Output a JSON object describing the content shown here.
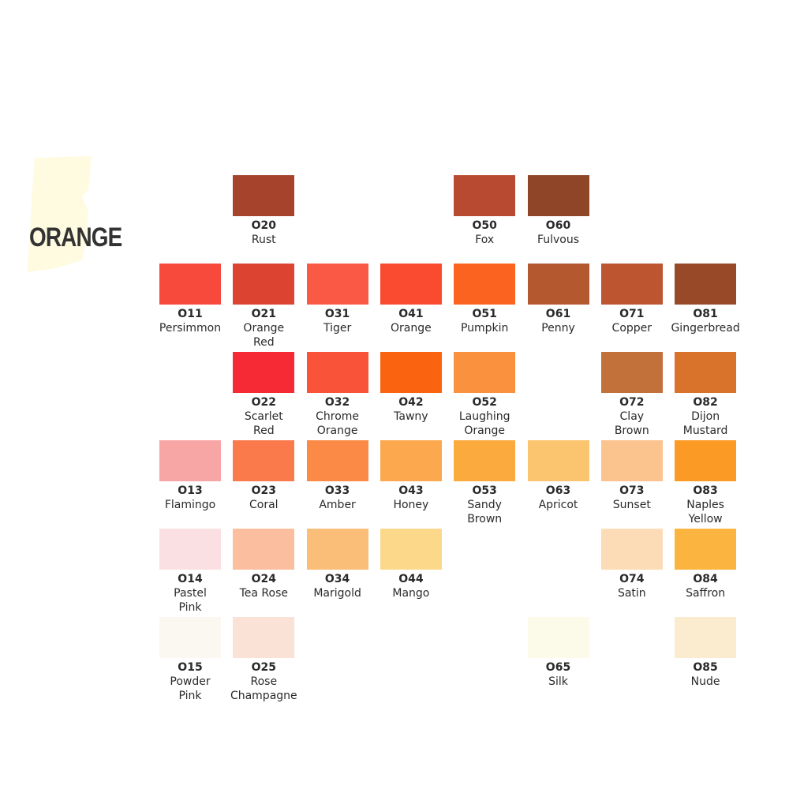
{
  "title": "ORANGE",
  "swatches": [
    {
      "code": "O20",
      "name": [
        "Rust"
      ],
      "color": "#a5432d"
    },
    {
      "code": "O50",
      "name": [
        "Fox"
      ],
      "color": "#b94a32"
    },
    {
      "code": "O60",
      "name": [
        "Fulvous"
      ],
      "color": "#8f4528"
    },
    {
      "code": "O11",
      "name": [
        "Persimmon"
      ],
      "color": "#f8493d"
    },
    {
      "code": "O21",
      "name": [
        "Orange",
        "Red"
      ],
      "color": "#dc4330"
    },
    {
      "code": "O31",
      "name": [
        "Tiger"
      ],
      "color": "#fa5a45"
    },
    {
      "code": "O41",
      "name": [
        "Orange"
      ],
      "color": "#fa4a30"
    },
    {
      "code": "O51",
      "name": [
        "Pumpkin"
      ],
      "color": "#fa6420"
    },
    {
      "code": "O61",
      "name": [
        "Penny"
      ],
      "color": "#b4582f"
    },
    {
      "code": "O71",
      "name": [
        "Copper"
      ],
      "color": "#bc5530"
    },
    {
      "code": "O81",
      "name": [
        "Gingerbread"
      ],
      "color": "#984a28"
    },
    {
      "code": "O22",
      "name": [
        "Scarlet",
        "Red"
      ],
      "color": "#f52a35"
    },
    {
      "code": "O32",
      "name": [
        "Chrome",
        "Orange"
      ],
      "color": "#f9543a"
    },
    {
      "code": "O42",
      "name": [
        "Tawny"
      ],
      "color": "#fa6410"
    },
    {
      "code": "O52",
      "name": [
        "Laughing",
        "Orange"
      ],
      "color": "#fa913f"
    },
    {
      "code": "O72",
      "name": [
        "Clay",
        "Brown"
      ],
      "color": "#c2713a"
    },
    {
      "code": "O82",
      "name": [
        "Dijon",
        "Mustard"
      ],
      "color": "#d9722a"
    },
    {
      "code": "O13",
      "name": [
        "Flamingo"
      ],
      "color": "#f7a5a5"
    },
    {
      "code": "O23",
      "name": [
        "Coral"
      ],
      "color": "#fa7a4c"
    },
    {
      "code": "O33",
      "name": [
        "Amber"
      ],
      "color": "#fa8a46"
    },
    {
      "code": "O43",
      "name": [
        "Honey"
      ],
      "color": "#fba84e"
    },
    {
      "code": "O53",
      "name": [
        "Sandy",
        "Brown"
      ],
      "color": "#fbab3e"
    },
    {
      "code": "O63",
      "name": [
        "Apricot"
      ],
      "color": "#fbc46e"
    },
    {
      "code": "O73",
      "name": [
        "Sunset"
      ],
      "color": "#fbc48e"
    },
    {
      "code": "O83",
      "name": [
        "Naples",
        "Yellow"
      ],
      "color": "#fb9a25"
    },
    {
      "code": "O14",
      "name": [
        "Pastel",
        "Pink"
      ],
      "color": "#fae0e2"
    },
    {
      "code": "O24",
      "name": [
        "Tea Rose"
      ],
      "color": "#fbbf9f"
    },
    {
      "code": "O34",
      "name": [
        "Marigold"
      ],
      "color": "#fbbe78"
    },
    {
      "code": "O44",
      "name": [
        "Mango"
      ],
      "color": "#fbd88a"
    },
    {
      "code": "O74",
      "name": [
        "Satin"
      ],
      "color": "#fbdcb6"
    },
    {
      "code": "O84",
      "name": [
        "Saffron"
      ],
      "color": "#fbb440"
    },
    {
      "code": "O15",
      "name": [
        "Powder",
        "Pink"
      ],
      "color": "#fbf8f2"
    },
    {
      "code": "O25",
      "name": [
        "Rose",
        "Champagne"
      ],
      "color": "#fbe2d6"
    },
    {
      "code": "O65",
      "name": [
        "Silk"
      ],
      "color": "#fcfbea"
    },
    {
      "code": "O85",
      "name": [
        "Nude"
      ],
      "color": "#fbecd0"
    }
  ]
}
